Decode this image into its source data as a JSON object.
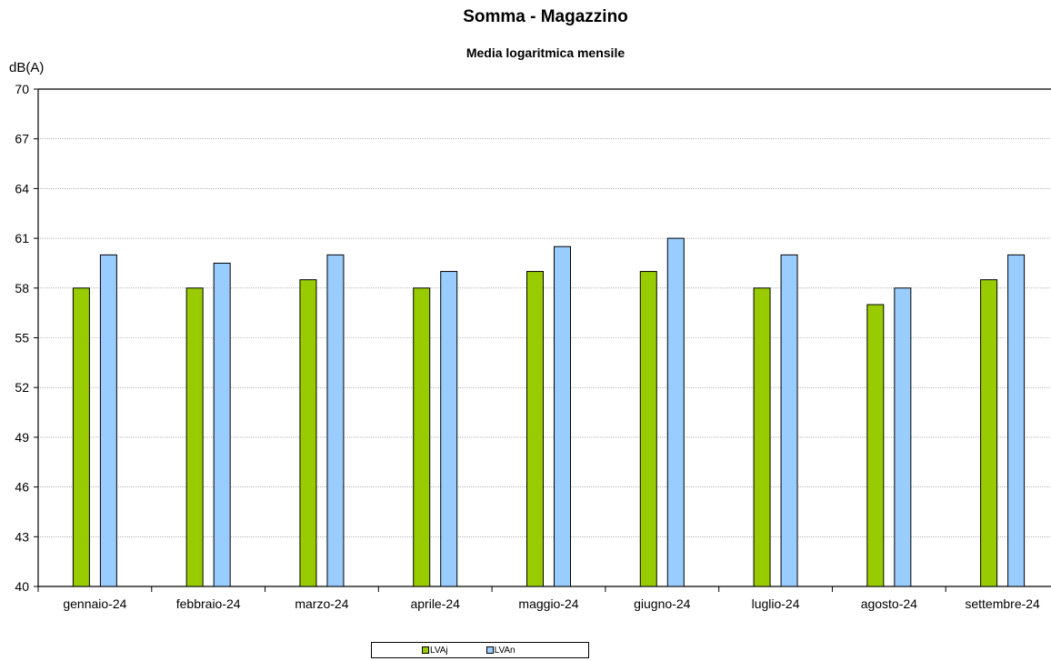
{
  "chart_data": {
    "type": "bar",
    "title": "Somma - Magazzino",
    "subtitle": "Media logaritmica mensile",
    "ylabel": "dB(A)",
    "xlabel": "",
    "ylim": [
      40,
      70
    ],
    "yticks": [
      40,
      43,
      46,
      49,
      52,
      55,
      58,
      61,
      64,
      67,
      70
    ],
    "grid": true,
    "legend_position": "bottom",
    "categories": [
      "gennaio-24",
      "febbraio-24",
      "marzo-24",
      "aprile-24",
      "maggio-24",
      "giugno-24",
      "luglio-24",
      "agosto-24",
      "settembre-24"
    ],
    "series": [
      {
        "name": "LVAj",
        "color": "#99cc00",
        "values": [
          58,
          58,
          58.5,
          58,
          59,
          59,
          58,
          57,
          58.5
        ]
      },
      {
        "name": "LVAn",
        "color": "#99ccff",
        "values": [
          60,
          59.5,
          60,
          59,
          60.5,
          61,
          60,
          58,
          60
        ]
      }
    ]
  }
}
